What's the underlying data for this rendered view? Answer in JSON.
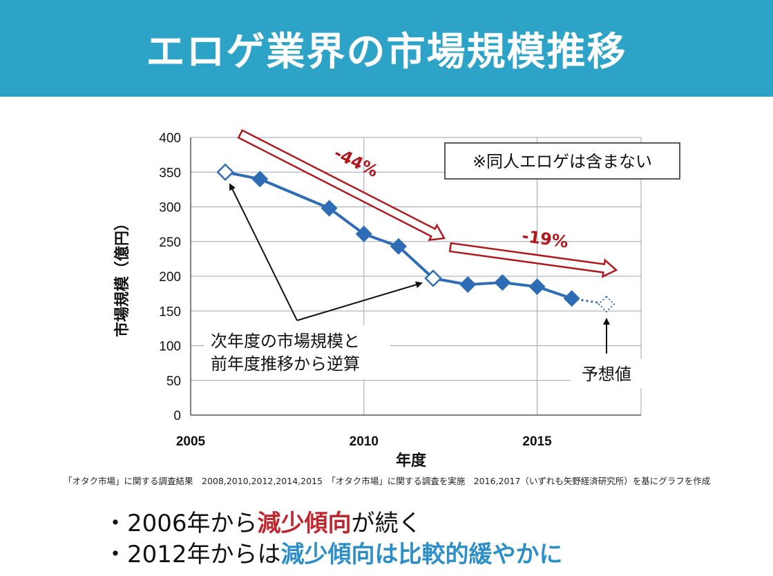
{
  "header": {
    "title": "エロゲ業界の市場規模推移"
  },
  "colors": {
    "header_bg": "#2ea3c8",
    "series": "#2e6db5",
    "arrow": "#b0181e",
    "grid": "#9aa3b5",
    "emphasis_red": "#c0262d",
    "emphasis_blue": "#2d8fc8"
  },
  "chart_data": {
    "type": "line",
    "xlabel": "年度",
    "ylabel": "市場規模（億円）",
    "xlim": [
      2005,
      2018
    ],
    "ylim": [
      0,
      400
    ],
    "x_ticks": [
      "2005",
      "2010",
      "2015"
    ],
    "y_ticks": [
      "0",
      "50",
      "100",
      "150",
      "200",
      "250",
      "300",
      "350",
      "400"
    ],
    "grid": true,
    "series": [
      {
        "points": [
          {
            "x": 2006,
            "y": 350,
            "marker": "open"
          },
          {
            "x": 2007,
            "y": 340,
            "marker": "filled"
          },
          {
            "x": 2009,
            "y": 298,
            "marker": "filled"
          },
          {
            "x": 2010,
            "y": 261,
            "marker": "filled"
          },
          {
            "x": 2011,
            "y": 243,
            "marker": "filled"
          },
          {
            "x": 2012,
            "y": 197,
            "marker": "open"
          },
          {
            "x": 2013,
            "y": 188,
            "marker": "filled"
          },
          {
            "x": 2014,
            "y": 191,
            "marker": "filled"
          },
          {
            "x": 2015,
            "y": 185,
            "marker": "filled"
          },
          {
            "x": 2016,
            "y": 168,
            "marker": "filled"
          },
          {
            "x": 2017,
            "y": 160,
            "marker": "dotted"
          }
        ]
      }
    ],
    "annotations": {
      "note_box": "※同人エロゲは含まない",
      "trend1_label": "-44%",
      "trend2_label": "-19%",
      "calc_note_line1": "次年度の市場規模と",
      "calc_note_line2": "前年度推移から逆算",
      "forecast_label": "予想値"
    }
  },
  "source": "「オタク市場」に関する調査結果　2008,2010,2012,2014,2015　「オタク市場」に関する調査を実施　2016,2017（いずれも矢野経済研究所）を基にグラフを作成",
  "bullets": [
    {
      "prefix": "・2006年から",
      "emphasis": "減少傾向",
      "suffix": "が続く"
    },
    {
      "prefix": "・2012年からは",
      "emphasis": "減少傾向は比較的緩やかに",
      "suffix": ""
    }
  ]
}
